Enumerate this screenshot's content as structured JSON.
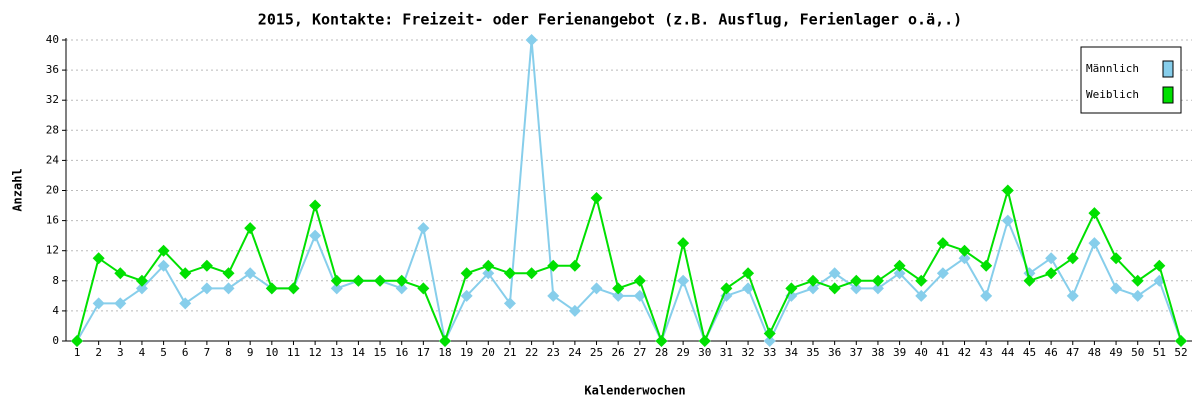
{
  "chart_data": {
    "type": "line",
    "title": "2015, Kontakte: Freizeit- oder Ferienangebot (z.B. Ausflug, Ferienlager o.ä,.)",
    "x_label": "Kalenderwochen",
    "y_label": "Anzahl",
    "x": [
      1,
      2,
      3,
      4,
      5,
      6,
      7,
      8,
      9,
      10,
      11,
      12,
      13,
      14,
      15,
      16,
      17,
      18,
      19,
      20,
      21,
      22,
      23,
      24,
      25,
      26,
      27,
      28,
      29,
      30,
      31,
      32,
      33,
      34,
      35,
      36,
      37,
      38,
      39,
      40,
      41,
      42,
      43,
      44,
      45,
      46,
      47,
      48,
      49,
      50,
      51,
      52
    ],
    "xlim": [
      1,
      52
    ],
    "ylim": [
      0,
      40
    ],
    "yticks": [
      0,
      4,
      8,
      12,
      16,
      20,
      24,
      28,
      32,
      36,
      40
    ],
    "grid": true,
    "legend": "upper right",
    "series": [
      {
        "name": "Männlich",
        "color": "#87ceeb",
        "values": [
          0,
          5,
          5,
          7,
          10,
          5,
          7,
          7,
          9,
          7,
          7,
          14,
          7,
          8,
          8,
          7,
          15,
          0,
          6,
          9,
          5,
          40,
          6,
          4,
          7,
          6,
          6,
          0,
          8,
          0,
          6,
          7,
          0,
          6,
          7,
          9,
          7,
          7,
          9,
          6,
          9,
          11,
          6,
          16,
          9,
          11,
          6,
          13,
          7,
          6,
          8,
          0
        ]
      },
      {
        "name": "Weiblich",
        "color": "#00e000",
        "values": [
          0,
          11,
          9,
          8,
          12,
          9,
          10,
          9,
          15,
          7,
          7,
          18,
          8,
          8,
          8,
          8,
          7,
          0,
          9,
          10,
          9,
          9,
          10,
          10,
          19,
          7,
          8,
          0,
          13,
          0,
          7,
          9,
          1,
          7,
          8,
          7,
          8,
          8,
          10,
          8,
          13,
          12,
          10,
          20,
          8,
          9,
          11,
          17,
          11,
          8,
          10,
          0
        ]
      }
    ]
  }
}
